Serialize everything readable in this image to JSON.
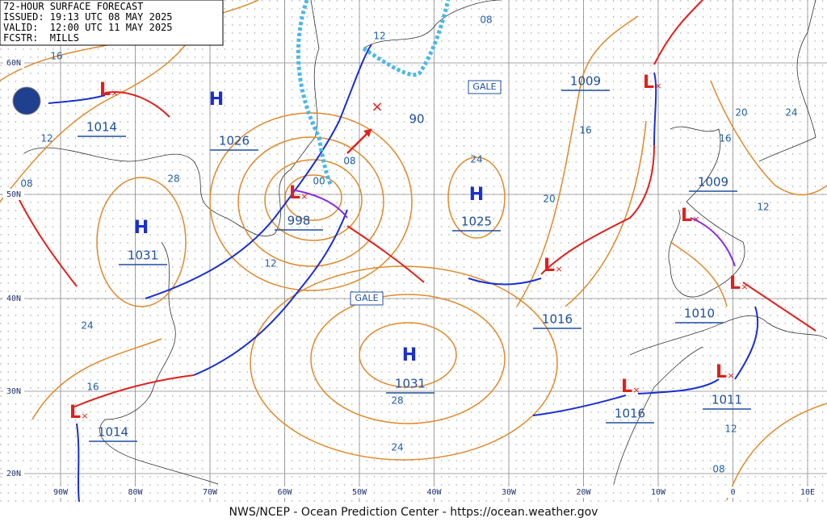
{
  "header": {
    "title": "72-HOUR SURFACE FORECAST",
    "issued": "ISSUED: 19:13 UTC 08 MAY 2025",
    "valid": "VALID:  12:00 UTC 11 MAY 2025",
    "forecaster": "FCSTR:  MILLS"
  },
  "latitudes": [
    "60N",
    "50N",
    "40N",
    "30N",
    "20N"
  ],
  "longitudes": [
    "90W",
    "80W",
    "70W",
    "60W",
    "50W",
    "40W",
    "30W",
    "20W",
    "10W",
    "0",
    "10E"
  ],
  "highs": [
    {
      "symbol": "H",
      "pressure": "1026"
    },
    {
      "symbol": "H",
      "pressure": "1031"
    },
    {
      "symbol": "H",
      "pressure": "1025"
    },
    {
      "symbol": "H",
      "pressure": "1031"
    }
  ],
  "lows": [
    {
      "pressure": "1014"
    },
    {
      "pressure": "998"
    },
    {
      "pressure": "1009"
    },
    {
      "pressure": "1009"
    },
    {
      "pressure": "1010"
    },
    {
      "pressure": "1011"
    },
    {
      "pressure": "1016"
    },
    {
      "pressure": "1014"
    },
    {
      "pressure": "1016"
    }
  ],
  "low_symbol": "L",
  "other_labels": [
    "90",
    "GALE",
    "GALE"
  ],
  "isobar_labels": [
    "12",
    "08",
    "16",
    "12",
    "08",
    "28",
    "08",
    "00",
    "12",
    "24",
    "24",
    "20",
    "16",
    "20",
    "24",
    "16",
    "12",
    "16",
    "28",
    "24",
    "12",
    "08"
  ],
  "footer": "NWS/NCEP - Ocean Prediction Center - https://ocean.weather.gov"
}
